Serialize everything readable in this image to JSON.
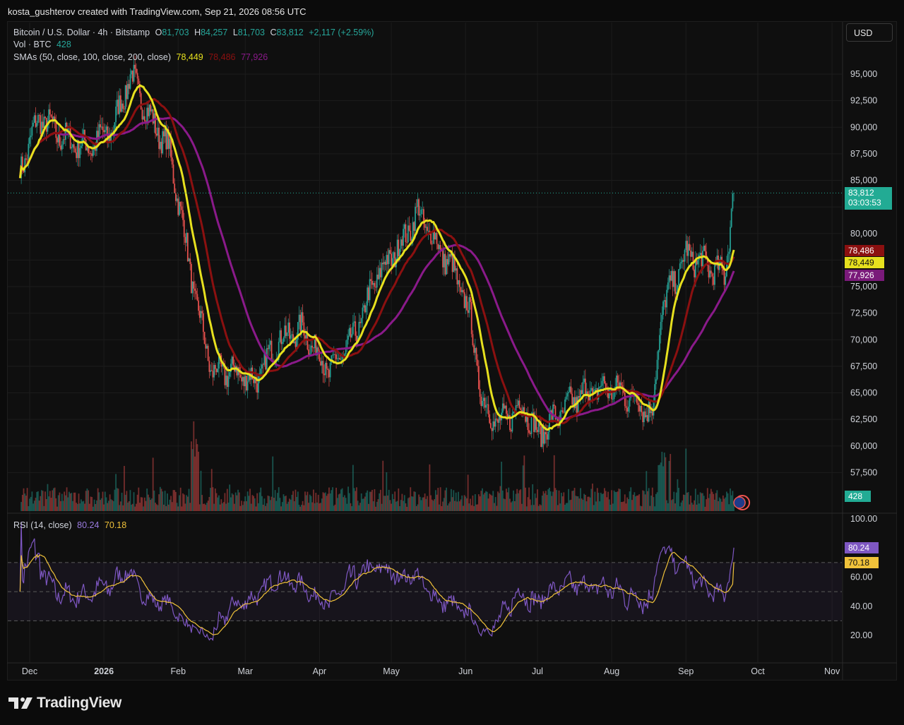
{
  "header": {
    "attribution": "kosta_gushterov created with TradingView.com, Sep 21, 2026 08:56 UTC"
  },
  "legend": {
    "symbol": "Bitcoin / U.S. Dollar · 4h · Bitstamp",
    "o_label": "O",
    "o_value": "81,703",
    "h_label": "H",
    "h_value": "84,257",
    "l_label": "L",
    "l_value": "81,703",
    "c_label": "C",
    "c_value": "83,812",
    "change": "+2,117 (+2.59%)",
    "vol_label": "Vol · BTC",
    "vol_value": "428",
    "sma_label": "SMAs (50, close, 100, close, 200, close)",
    "sma50": "78,449",
    "sma100": "78,486",
    "sma200": "77,926",
    "rsi_label": "RSI (14, close)",
    "rsi_value": "80.24",
    "rsi_ma": "70.18"
  },
  "currency_button": "USD",
  "price_tags": {
    "last_price": "83,812",
    "countdown": "03:03:53",
    "sma100": "78,486",
    "sma50": "78,449",
    "sma200": "77,926",
    "volume": "428",
    "rsi": "80.24",
    "rsi_ma": "70.18"
  },
  "brand": "TradingView",
  "colors": {
    "up": "#26a69a",
    "down": "#ef5350",
    "sma50": "#e6e01e",
    "sma100": "#8b1010",
    "sma200": "#8a1a8a",
    "rsi": "#7e57c2",
    "rsi_ma": "#f0c23a",
    "last_price": "#22ab94"
  },
  "chart_data": [
    {
      "type": "candlestick",
      "timeframe": "4h",
      "ylim": [
        55000,
        97500
      ],
      "price_axis_ticks": [
        "95,000",
        "92,500",
        "90,000",
        "87,500",
        "85,000",
        "80,000",
        "75,000",
        "72,500",
        "70,000",
        "67,500",
        "65,000",
        "62,500",
        "60,000",
        "57,500"
      ],
      "time_axis_ticks": [
        "Dec",
        "2026",
        "Feb",
        "Mar",
        "Apr",
        "May",
        "Jun",
        "Jul",
        "Aug",
        "Sep",
        "Oct",
        "Nov"
      ],
      "close_path_approx": {
        "dates": [
          "Nov 27",
          "Dec 5",
          "Dec 15",
          "Dec 25",
          "Jan 5",
          "Jan 12",
          "Jan 20",
          "Jan 28",
          "Feb 2",
          "Feb 8",
          "Feb 15",
          "Feb 25",
          "Mar 5",
          "Mar 15",
          "Mar 25",
          "Apr 5",
          "Apr 15",
          "Apr 25",
          "May 5",
          "May 12",
          "May 20",
          "May 28",
          "Jun 3",
          "Jun 8",
          "Jun 15",
          "Jun 25",
          "Jul 1",
          "Jul 10",
          "Jul 20",
          "Aug 1",
          "Aug 10",
          "Aug 18",
          "Aug 22",
          "Sep 1",
          "Sep 10",
          "Sep 17",
          "Sep 21"
        ],
        "close": [
          86000,
          91000,
          89000,
          88000,
          90000,
          95000,
          91000,
          88000,
          82000,
          74000,
          67000,
          67000,
          66000,
          70000,
          71000,
          67000,
          70000,
          76000,
          79000,
          82000,
          79000,
          76000,
          72000,
          64000,
          62000,
          64000,
          61000,
          63000,
          65000,
          65500,
          64500,
          63000,
          73000,
          78000,
          77000,
          76000,
          83812
        ]
      },
      "last_close": 83812,
      "series": [
        {
          "name": "SMA 50",
          "last": 78449
        },
        {
          "name": "SMA 100",
          "last": 78486
        },
        {
          "name": "SMA 200",
          "last": 77926
        }
      ]
    },
    {
      "type": "bar",
      "name": "Vol · BTC",
      "last": 428
    },
    {
      "type": "line",
      "name": "RSI (14, close)",
      "ylim": [
        10,
        100
      ],
      "yticks": [
        "100.00",
        "60.00",
        "40.00",
        "20.00"
      ],
      "bands": [
        30,
        50,
        70
      ],
      "series": [
        {
          "name": "RSI",
          "last": 80.24
        },
        {
          "name": "RSI MA",
          "last": 70.18
        }
      ]
    }
  ]
}
